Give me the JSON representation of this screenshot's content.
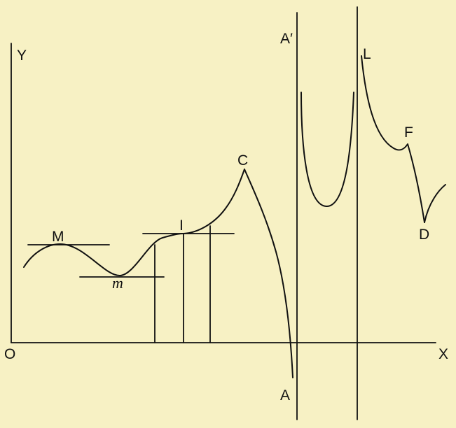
{
  "labels": {
    "origin": "O",
    "x_axis": "X",
    "y_axis": "Y",
    "maximum": "M",
    "minimum": "m",
    "inflection": "I",
    "cusp": "C",
    "asymptote_bottom": "A",
    "asymptote_top": "A′",
    "asymptote_right": "L",
    "corner_point": "F",
    "stop_point": "D"
  },
  "colors": {
    "background": "#f7f1c4",
    "ink": "#111111"
  }
}
